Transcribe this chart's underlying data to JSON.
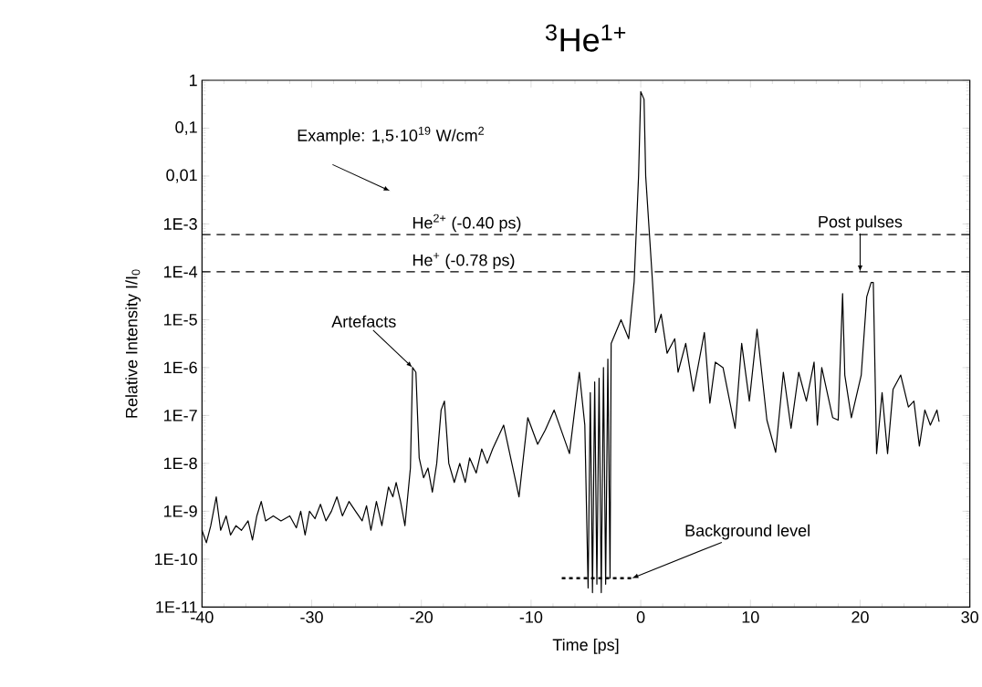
{
  "chart_data": {
    "type": "line",
    "title": "$^{3}$He$^{1+}$",
    "xlabel": "Time [ps]",
    "ylabel": "Relative Intensity I/I$_{0}$",
    "log": "y",
    "grid": false,
    "marker": "none",
    "xlim": [
      -40,
      30
    ],
    "xticks": [
      -40,
      -30,
      -20,
      -10,
      0,
      10,
      20,
      30
    ],
    "ylim": [
      1e-11,
      1
    ],
    "yticks": [
      {
        "value": 1e-11,
        "label": "1E-11"
      },
      {
        "value": 1e-10,
        "label": "1E-10"
      },
      {
        "value": 1e-09,
        "label": "1E-9"
      },
      {
        "value": 1e-08,
        "label": "1E-8"
      },
      {
        "value": 1e-07,
        "label": "1E-7"
      },
      {
        "value": 1e-06,
        "label": "1E-6"
      },
      {
        "value": 1e-05,
        "label": "1E-5"
      },
      {
        "value": 0.0001,
        "label": "1E-4"
      },
      {
        "value": 0.001,
        "label": "1E-3"
      },
      {
        "value": 0.01,
        "label": "0,01"
      },
      {
        "value": 0.1,
        "label": "0,1"
      },
      1
    ],
    "series": [
      {
        "color": "#000000",
        "line_style": "solid",
        "x": [
          -40.0,
          -39.6,
          -39.2,
          -38.7,
          -38.3,
          -37.8,
          -37.4,
          -36.9,
          -36.4,
          -35.8,
          -35.4,
          -35.0,
          -34.6,
          -34.2,
          -33.5,
          -32.8,
          -32.0,
          -31.4,
          -31.0,
          -30.6,
          -30.2,
          -29.7,
          -29.2,
          -28.7,
          -28.2,
          -27.7,
          -27.2,
          -26.6,
          -26.0,
          -25.4,
          -25.0,
          -24.6,
          -24.1,
          -23.6,
          -23.0,
          -22.6,
          -22.3,
          -21.9,
          -21.5,
          -21.0,
          -20.8,
          -20.5,
          -20.2,
          -19.8,
          -19.4,
          -19.0,
          -18.6,
          -18.2,
          -17.9,
          -17.5,
          -17.0,
          -16.5,
          -16.0,
          -15.6,
          -15.0,
          -14.5,
          -14.0,
          -13.5,
          -12.5,
          -11.1,
          -10.3,
          -9.4,
          -8.7,
          -7.9,
          -6.5,
          -5.6,
          -5.1,
          -4.8,
          -4.6,
          -4.4,
          -4.2,
          -4.0,
          -3.8,
          -3.6,
          -3.4,
          -3.2,
          -3.0,
          -2.8,
          -2.7,
          -1.8,
          -1.1,
          -0.6,
          -0.2,
          0.0,
          0.3,
          0.45,
          1.0,
          1.35,
          1.86,
          2.4,
          3.1,
          3.4,
          4.1,
          4.8,
          5.8,
          6.3,
          6.8,
          7.5,
          8.6,
          9.2,
          9.9,
          10.6,
          11.5,
          12.3,
          13.0,
          13.7,
          14.4,
          15.1,
          15.8,
          16.1,
          16.5,
          17.5,
          18.0,
          18.4,
          18.6,
          19.2,
          20.1,
          20.6,
          21.0,
          21.2,
          21.5,
          22.0,
          22.5,
          23.0,
          23.7,
          24.4,
          24.9,
          25.4,
          25.9,
          26.4,
          27.0,
          27.2
        ],
        "values": [
          4e-10,
          2.2e-10,
          5e-10,
          2e-09,
          4e-10,
          8e-10,
          3.2e-10,
          5e-10,
          4e-10,
          6.3e-10,
          2.5e-10,
          8e-10,
          1.6e-09,
          6.3e-10,
          8e-10,
          6.3e-10,
          8e-10,
          4.5e-10,
          1e-09,
          3.2e-10,
          1e-09,
          7e-10,
          1.4e-09,
          6.3e-10,
          1e-09,
          2e-09,
          8e-10,
          1.6e-09,
          1e-09,
          6.3e-10,
          1.3e-09,
          4e-10,
          1.6e-09,
          5e-10,
          3.2e-09,
          2e-09,
          4e-09,
          1.6e-09,
          5e-10,
          8e-09,
          1e-06,
          8e-07,
          1.3e-08,
          5e-09,
          8e-09,
          2.5e-09,
          1e-08,
          1.3e-07,
          2e-07,
          1e-08,
          4e-09,
          1e-08,
          4e-09,
          1.3e-08,
          6.3e-09,
          2e-08,
          1e-08,
          2e-08,
          6.3e-08,
          2e-09,
          9e-08,
          2.5e-08,
          5e-08,
          1.3e-07,
          1.6e-08,
          8e-07,
          6.3e-08,
          2.5e-11,
          3e-07,
          2e-11,
          5e-07,
          3e-11,
          6e-07,
          2e-11,
          1e-06,
          3e-11,
          1.5e-06,
          4e-11,
          3.2e-06,
          1e-05,
          4e-06,
          6.3e-05,
          0.01,
          0.58,
          0.4,
          0.01,
          0.00011,
          5.4e-06,
          1.3e-05,
          2e-06,
          4e-06,
          8e-07,
          3.2e-06,
          3.2e-07,
          5.4e-06,
          1.8e-07,
          1.3e-06,
          1e-06,
          5.4e-08,
          3.2e-06,
          2e-07,
          6.3e-06,
          8e-08,
          1.7e-08,
          8e-07,
          5.4e-08,
          8e-07,
          2e-07,
          1.3e-06,
          6.3e-08,
          1e-06,
          9e-08,
          8e-08,
          3.5e-05,
          7e-07,
          9e-08,
          7e-07,
          3e-05,
          6e-05,
          6e-05,
          1.6e-08,
          3e-07,
          1.6e-08,
          3.5e-07,
          7e-07,
          1.5e-07,
          2e-07,
          2.3e-08,
          1.3e-07,
          6.3e-08,
          1.3e-07,
          7.4e-08
        ]
      },
      {
        "color": "#000000",
        "line_style": "dashed",
        "x": [
          -7.2,
          -0.8
        ],
        "values": [
          4e-11,
          4e-11
        ]
      }
    ],
    "ref_lines": [
      {
        "axis": "y",
        "value": 0.0006,
        "label": "He$^{2+}$ (-0.40 ps)",
        "color": "#000000",
        "line_style": "dashed"
      },
      {
        "axis": "y",
        "value": 0.0001,
        "label": "He$^{+}$ (-0.78 ps)",
        "color": "#000000",
        "line_style": "dashed"
      }
    ],
    "annotations": [
      "Example: 1,5·10$^{19}$ W/cm$^{2}$",
      {
        "text": "Artefacts",
        "x": -20.8,
        "y": 1e-06
      },
      {
        "text": "Post pulses",
        "x": 20,
        "y": 0.0001
      },
      {
        "text": "Background level",
        "x": -0.8,
        "y": 4e-11
      }
    ]
  }
}
